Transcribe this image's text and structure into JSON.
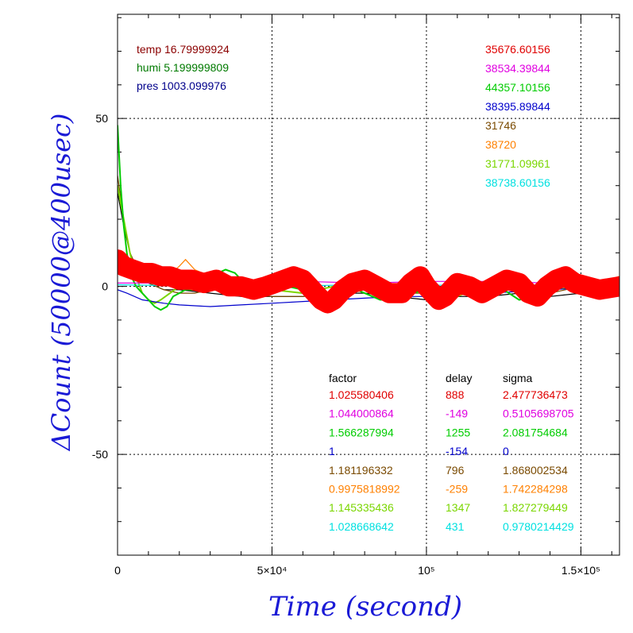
{
  "chart_data": {
    "type": "line",
    "xlabel": "Time (second)",
    "ylabel": "ΔCount (50000@400usec)",
    "xlim": [
      0,
      162500
    ],
    "ylim": [
      -80,
      81
    ],
    "x_ticks": [
      {
        "value": 0,
        "label": "0"
      },
      {
        "value": 50000,
        "label": "5×10⁴"
      },
      {
        "value": 100000,
        "label": "10⁵"
      },
      {
        "value": 150000,
        "label": "1.5×10⁵"
      }
    ],
    "y_ticks": [
      {
        "value": 50,
        "label": "50"
      },
      {
        "value": 0,
        "label": "0"
      },
      {
        "value": -50,
        "label": "-50"
      }
    ],
    "grid": true,
    "env": [
      {
        "label": "temp",
        "value": "16.79999924",
        "color": "#8b0000"
      },
      {
        "label": "humi",
        "value": "5.199999809",
        "color": "#007a00"
      },
      {
        "label": "pres",
        "value": "1003.099976",
        "color": "#00008b"
      }
    ],
    "means": [
      {
        "value": "35676.60156",
        "color": "#e00000"
      },
      {
        "value": "38534.39844",
        "color": "#e000e0"
      },
      {
        "value": "44357.10156",
        "color": "#00cc00"
      },
      {
        "value": "38395.89844",
        "color": "#0000cc"
      },
      {
        "value": "31746",
        "color": "#7a4a00"
      },
      {
        "value": "38720",
        "color": "#ff8000"
      },
      {
        "value": "31771.09961",
        "color": "#7ad600"
      },
      {
        "value": "38738.60156",
        "color": "#00e0e0"
      }
    ],
    "table": {
      "headers": [
        "factor",
        "delay",
        "sigma"
      ],
      "rows": [
        {
          "factor": "1.025580406",
          "delay": "888",
          "sigma": "2.477736473",
          "color": "#e00000"
        },
        {
          "factor": "1.044000864",
          "delay": "-149",
          "sigma": "0.5105698705",
          "color": "#e000e0"
        },
        {
          "factor": "1.566287994",
          "delay": "1255",
          "sigma": "2.081754684",
          "color": "#00cc00"
        },
        {
          "factor": "1",
          "delay": "-154",
          "sigma": "0",
          "color": "#0000cc"
        },
        {
          "factor": "1.181196332",
          "delay": "796",
          "sigma": "1.868002534",
          "color": "#7a4a00"
        },
        {
          "factor": "0.9975818992",
          "delay": "-259",
          "sigma": "1.742284298",
          "color": "#ff8000"
        },
        {
          "factor": "1.145335436",
          "delay": "1347",
          "sigma": "1.827279449",
          "color": "#7ad600"
        },
        {
          "factor": "1.028668642",
          "delay": "431",
          "sigma": "0.9780214429",
          "color": "#00e0e0"
        }
      ]
    },
    "series": [
      {
        "color": "#000000",
        "x": [
          0,
          2000,
          4000,
          7000,
          10000,
          15000,
          20000,
          30000,
          40000,
          50000,
          60000,
          70000,
          80000,
          90000,
          100000,
          110000,
          120000,
          130000,
          140000,
          150000,
          162500
        ],
        "y": [
          28,
          18,
          10,
          4,
          1,
          -1,
          -1,
          -2,
          -3,
          -3,
          -3,
          -2,
          -2,
          -3,
          -4,
          -3,
          -3,
          -2,
          -3,
          -2,
          0
        ]
      },
      {
        "color": "#7a4a00",
        "x": [
          0,
          2000,
          4000,
          7000,
          10000,
          15000,
          20000,
          25000,
          30000,
          40000,
          50000,
          60000,
          70000,
          80000,
          90000,
          100000,
          110000,
          120000,
          130000,
          140000,
          150000,
          162500
        ],
        "y": [
          33,
          20,
          10,
          4,
          1,
          -1,
          -2,
          -2,
          -1,
          -2,
          -3,
          -3,
          -2,
          -1,
          -2,
          -2,
          -1,
          -1,
          -1,
          -2,
          0,
          1
        ]
      },
      {
        "color": "#7ad600",
        "x": [
          0,
          2000,
          4000,
          6000,
          8000,
          10000,
          12000,
          14000,
          17000,
          20000,
          25000,
          30000,
          35000,
          40000,
          50000,
          60000,
          65000,
          70000,
          75000,
          80000,
          90000,
          100000,
          105000,
          110000,
          120000,
          130000,
          140000,
          150000,
          162500
        ],
        "y": [
          30,
          20,
          10,
          3,
          -2,
          -4,
          -5,
          -4,
          -2,
          0,
          1,
          2,
          0,
          -1,
          -1,
          -2,
          -1,
          0,
          1,
          0,
          -1,
          -2,
          -1,
          0,
          -1,
          0,
          -1,
          0,
          1
        ]
      },
      {
        "color": "#00e0e0",
        "x": [
          0,
          20000,
          40000,
          60000,
          80000,
          100000,
          120000,
          140000,
          162500
        ],
        "y": [
          0.5,
          0.2,
          0.4,
          0.2,
          0.5,
          0.3,
          0.6,
          0.4,
          0.8
        ]
      },
      {
        "color": "#0000cc",
        "x": [
          0,
          3000,
          8000,
          15000,
          20000,
          30000,
          40000,
          50000,
          60000,
          70000,
          80000,
          90000,
          100000,
          110000,
          120000,
          130000,
          140000,
          150000,
          162500
        ],
        "y": [
          -1,
          -2,
          -4,
          -5,
          -5.5,
          -6,
          -5.5,
          -5,
          -4.5,
          -4,
          -3.5,
          -3,
          -3,
          -2.5,
          -2,
          -1.5,
          -1,
          -0.5,
          0
        ]
      },
      {
        "color": "#00cc00",
        "x": [
          0,
          1000,
          2000,
          3000,
          4000,
          5000,
          6000,
          8000,
          10000,
          12000,
          14000,
          16000,
          18000,
          20000,
          22000,
          25000,
          28000,
          30000,
          35000,
          38000,
          40000,
          45000,
          50000,
          55000,
          60000,
          63000,
          66000,
          70000,
          75000,
          80000,
          85000,
          90000,
          95000,
          100000,
          105000,
          110000,
          115000,
          120000,
          125000,
          130000,
          135000,
          140000,
          145000,
          150000,
          155000,
          162500
        ],
        "y": [
          48,
          30,
          18,
          10,
          5,
          2,
          0,
          -2,
          -4,
          -6,
          -7,
          -6,
          -3,
          -2,
          -1,
          -1,
          1,
          3,
          5,
          4,
          2,
          1,
          1,
          0,
          -1,
          -3,
          -4,
          -2,
          0,
          -2,
          -4,
          -4,
          -2,
          -1,
          -2,
          -3,
          -1,
          0,
          -1,
          -4,
          -3,
          0,
          2,
          1,
          0,
          1
        ]
      },
      {
        "color": "#ff8000",
        "x": [
          0,
          3000,
          6000,
          10000,
          15000,
          20000,
          22000,
          25000,
          30000,
          35000,
          40000,
          45000,
          50000,
          55000,
          60000,
          63000,
          65000,
          70000,
          75000,
          80000,
          85000,
          90000,
          95000,
          98000,
          100000,
          105000,
          110000,
          115000,
          120000,
          125000,
          130000,
          135000,
          140000,
          145000,
          150000,
          155000,
          162500
        ],
        "y": [
          10,
          7,
          6,
          5,
          2,
          6,
          8,
          5,
          3,
          2,
          1,
          0,
          0,
          2,
          5,
          3,
          0,
          -3,
          -1,
          2,
          0,
          -2,
          0,
          3,
          2,
          -1,
          -3,
          -1,
          2,
          0,
          -2,
          0,
          2,
          1,
          2,
          1,
          3
        ]
      },
      {
        "color": "#e000e0",
        "x": [
          0,
          20000,
          40000,
          60000,
          80000,
          100000,
          120000,
          140000,
          162500
        ],
        "y": [
          1,
          1,
          1.5,
          1.5,
          1,
          1.5,
          1.5,
          1,
          2
        ]
      },
      {
        "color": "#ff0000",
        "x": [
          0,
          2000,
          5000,
          8000,
          11000,
          14000,
          17000,
          20000,
          24000,
          28000,
          32000,
          36000,
          40000,
          44000,
          48000,
          51000,
          54000,
          57000,
          60000,
          62000,
          64000,
          66000,
          68000,
          70000,
          73000,
          76000,
          80000,
          84000,
          88000,
          92000,
          95000,
          98000,
          100000,
          102000,
          104000,
          106000,
          108000,
          110000,
          114000,
          118000,
          122000,
          126000,
          130000,
          133000,
          136000,
          139000,
          142000,
          145000,
          148000,
          152000,
          156000,
          162500
        ],
        "y": [
          8,
          6,
          5,
          4,
          4,
          3,
          3,
          2,
          2,
          1,
          2,
          0,
          0,
          -1,
          0,
          1,
          2,
          3,
          2,
          0,
          -2,
          -4,
          -5,
          -4,
          -1,
          1,
          2,
          0,
          -2,
          -2,
          1,
          3,
          0,
          -2,
          -4,
          -3,
          -1,
          1,
          0,
          -2,
          0,
          2,
          1,
          -2,
          -3,
          0,
          2,
          3,
          1,
          0,
          -1,
          0
        ],
        "band": 3
      }
    ]
  }
}
